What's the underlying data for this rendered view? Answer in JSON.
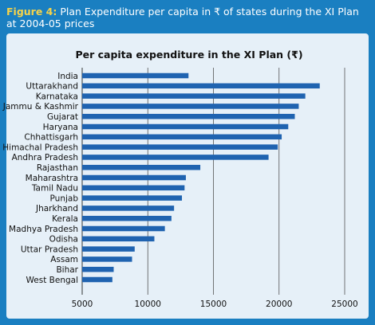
{
  "caption": {
    "figure_label": "Figure 4:",
    "text": " Plan Expenditure per capita in ₹ of states during the XI Plan at 2004-05 prices"
  },
  "colors": {
    "frame": "#1a7fc1",
    "panel": "#e6f0f8",
    "bar": "#1f63b0",
    "grid": "#555555",
    "caption_label": "#f6d34a"
  },
  "chart_data": {
    "type": "bar",
    "orientation": "horizontal",
    "title": "Per capita expenditure in the XI Plan (₹)",
    "xlabel": "",
    "ylabel": "",
    "xlim": [
      5000,
      25000
    ],
    "xticks": [
      5000,
      10000,
      15000,
      20000,
      25000
    ],
    "grid": "vertical",
    "legend": "none",
    "categories": [
      "India",
      "Uttarakhand",
      "Karnataka",
      "Jammu & Kashmir",
      "Gujarat",
      "Haryana",
      "Chhattisgarh",
      "Himachal Pradesh",
      "Andhra Pradesh",
      "Rajasthan",
      "Maharashtra",
      "Tamil Nadu",
      "Punjab",
      "Jharkhand",
      "Kerala",
      "Madhya Pradesh",
      "Odisha",
      "Uttar Pradesh",
      "Assam",
      "Bihar",
      "West Bengal"
    ],
    "values": [
      13100,
      23100,
      22000,
      21500,
      21200,
      20700,
      20200,
      19900,
      19200,
      14000,
      12900,
      12800,
      12600,
      12000,
      11800,
      11300,
      10500,
      9000,
      8800,
      7400,
      7300
    ]
  }
}
